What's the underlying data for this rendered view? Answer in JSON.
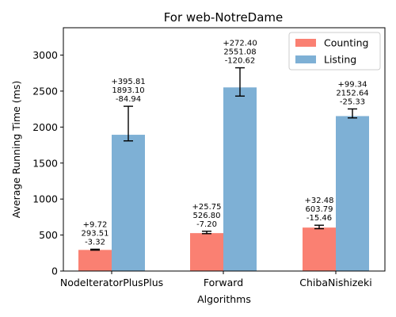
{
  "chart_data": {
    "type": "bar",
    "title": "For web-NotreDame",
    "xlabel": "Algorithms",
    "ylabel": "Average Running Time (ms)",
    "ylim": [
      0,
      3380
    ],
    "yticks": [
      0,
      500,
      1000,
      1500,
      2000,
      2500,
      3000
    ],
    "ytick_labels": [
      "0",
      "500",
      "1000",
      "1500",
      "2000",
      "2500",
      "3000"
    ],
    "categories": [
      "NodeIteratorPlusPlus",
      "Forward",
      "ChibaNishizeki"
    ],
    "legend_position": "top-right",
    "grid": false,
    "series": [
      {
        "name": "Counting",
        "color": "#fa8072",
        "values": [
          293.51,
          526.8,
          603.79
        ],
        "err_plus": [
          9.72,
          25.75,
          32.48
        ],
        "err_minus": [
          3.32,
          7.2,
          15.46
        ],
        "labels": [
          [
            "+9.72",
            "293.51",
            "-3.32"
          ],
          [
            "+25.75",
            "526.80",
            "-7.20"
          ],
          [
            "+32.48",
            "603.79",
            "-15.46"
          ]
        ]
      },
      {
        "name": "Listing",
        "color": "#7eb0d5",
        "values": [
          1893.1,
          2551.08,
          2152.64
        ],
        "err_plus": [
          395.81,
          272.4,
          99.34
        ],
        "err_minus": [
          84.94,
          120.62,
          25.33
        ],
        "labels": [
          [
            "+395.81",
            "1893.10",
            "-84.94"
          ],
          [
            "+272.40",
            "2551.08",
            "-120.62"
          ],
          [
            "+99.34",
            "2152.64",
            "-25.33"
          ]
        ]
      }
    ]
  }
}
